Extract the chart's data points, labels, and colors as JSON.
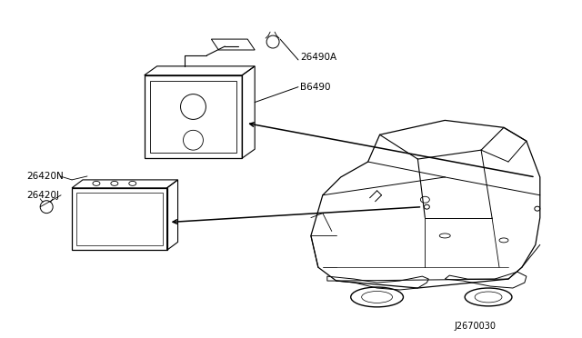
{
  "background_color": "#ffffff",
  "line_color": "#000000",
  "text_color": "#000000",
  "diagram_code": "J2670030",
  "label_26490A": "26490A",
  "label_26490": "B6490",
  "label_26420N": "26420N",
  "label_26420J": "26420J"
}
